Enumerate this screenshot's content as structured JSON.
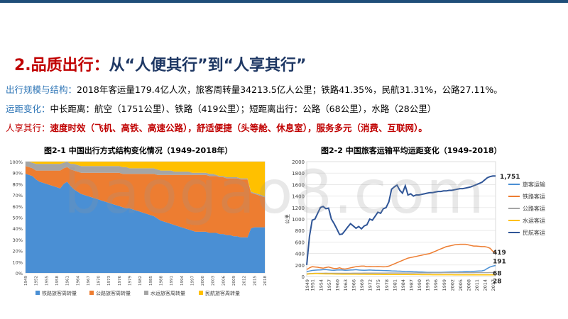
{
  "slide": {
    "title_prefix": "2.品质出行：",
    "title_rest": "从“人便其行”到“人享其行”",
    "line1_label": "出行规模与结构：",
    "line1_text": "2018年客运量179.4亿人次，旅客周转量34213.5亿人公里；铁路41.35%，民航31.31%，公路27.11%。",
    "line2_label": "运距变化：",
    "line2_text": "中长距离：航空（1751公里）、铁路（419公里）；短距离出行：公路（68公里），水路（28公里）",
    "line3_label": "人享其行：",
    "line3_text": "速度时效（飞机、高铁、高速公路），舒适便捷（头等舱、休息室），服务多元（消费、互联网）。",
    "watermark": "baogao8.com"
  },
  "colors": {
    "rail": "#4a8fd4",
    "road": "#ed7d31",
    "water": "#a5a5a5",
    "air": "#ffc000",
    "air_line": "#2f5597"
  },
  "chart_data": [
    {
      "type": "area",
      "title": "图2-1 中国出行方式结构变化情况（1949-2018年）",
      "x": [
        1949,
        1950,
        1951,
        1952,
        1953,
        1954,
        1955,
        1956,
        1957,
        1958,
        1959,
        1960,
        1961,
        1962,
        1963,
        1964,
        1965,
        1966,
        1967,
        1968,
        1969,
        1970,
        1971,
        1972,
        1973,
        1974,
        1975,
        1976,
        1977,
        1978,
        1979,
        1980,
        1981,
        1982,
        1983,
        1984,
        1985,
        1986,
        1987,
        1988,
        1989,
        1990,
        1991,
        1992,
        1993,
        1994,
        1995,
        1996,
        1997,
        1998,
        1999,
        2000,
        2001,
        2002,
        2003,
        2004,
        2005,
        2006,
        2007,
        2008,
        2009,
        2010,
        2011,
        2012,
        2013,
        2014,
        2015,
        2016,
        2017,
        2018
      ],
      "x_tick_labels": [
        "1949",
        "1952",
        "1955",
        "1958",
        "1961",
        "1964",
        "1967",
        "1970",
        "1973",
        "1976",
        "1979",
        "1982",
        "1985",
        "1988",
        "1991",
        "1994",
        "1997",
        "2000",
        "2003",
        "2006",
        "2009",
        "2012",
        "2015",
        "2018"
      ],
      "ylim": [
        0,
        100
      ],
      "y_ticks": [
        "0%",
        "10%",
        "20%",
        "30%",
        "40%",
        "50%",
        "60%",
        "70%",
        "80%",
        "90%",
        "100%"
      ],
      "stacked": true,
      "legend_position": "bottom",
      "series": [
        {
          "name": "铁路旅客周转量",
          "color_key": "rail",
          "values": [
            89,
            88,
            87,
            84,
            82,
            81,
            80,
            79,
            78,
            77,
            76,
            80,
            82,
            78,
            75,
            73,
            71,
            70,
            69,
            68,
            67,
            66,
            65,
            64,
            63,
            62,
            61,
            60,
            59,
            58,
            58,
            57,
            56,
            55,
            54,
            53,
            52,
            51,
            49,
            47,
            46,
            45,
            44,
            43,
            42,
            41,
            40,
            39,
            38,
            37,
            37,
            37,
            37,
            36,
            36,
            36,
            35,
            35,
            34,
            34,
            33,
            33,
            32,
            32,
            32,
            40,
            41,
            41,
            41,
            41
          ]
        },
        {
          "name": "公路旅客周转量",
          "color_key": "road",
          "values": [
            7,
            7,
            7,
            8,
            10,
            11,
            12,
            13,
            14,
            15,
            16,
            14,
            13,
            15,
            17,
            18,
            19,
            20,
            21,
            22,
            23,
            24,
            25,
            26,
            27,
            28,
            29,
            30,
            30,
            31,
            31,
            32,
            33,
            34,
            35,
            36,
            37,
            38,
            39,
            41,
            42,
            43,
            44,
            45,
            46,
            47,
            48,
            49,
            50,
            51,
            51,
            51,
            51,
            51,
            51,
            51,
            51,
            51,
            51,
            51,
            52,
            52,
            52,
            52,
            52,
            32,
            30,
            29,
            28,
            27
          ]
        },
        {
          "name": "水运旅客周转量",
          "color_key": "water",
          "values": [
            4,
            5,
            5,
            6,
            6,
            6,
            6,
            6,
            6,
            6,
            6,
            5,
            5,
            5,
            6,
            6,
            6,
            6,
            6,
            6,
            6,
            6,
            6,
            6,
            6,
            6,
            6,
            6,
            6,
            6,
            5,
            5,
            5,
            5,
            5,
            5,
            5,
            5,
            5,
            4,
            4,
            4,
            4,
            3,
            3,
            3,
            3,
            3,
            2,
            2,
            2,
            2,
            2,
            2,
            2,
            1,
            1,
            1,
            1,
            1,
            1,
            1,
            1,
            1,
            1,
            1,
            1,
            1,
            1,
            1
          ]
        },
        {
          "name": "民航旅客周转量",
          "color_key": "air",
          "values": [
            0,
            0,
            1,
            2,
            2,
            2,
            2,
            2,
            2,
            2,
            2,
            1,
            0,
            2,
            2,
            3,
            4,
            4,
            4,
            4,
            4,
            4,
            4,
            4,
            4,
            4,
            4,
            4,
            5,
            5,
            6,
            6,
            6,
            6,
            6,
            6,
            6,
            6,
            7,
            8,
            8,
            8,
            8,
            9,
            9,
            9,
            9,
            9,
            10,
            10,
            10,
            10,
            10,
            11,
            11,
            12,
            13,
            13,
            14,
            14,
            14,
            14,
            15,
            15,
            15,
            27,
            28,
            29,
            30,
            31
          ]
        }
      ]
    },
    {
      "type": "line",
      "title": "图2-2 中国旅客运输平均运距变化（1949-2018）",
      "ylabel": "公里",
      "ylim": [
        0,
        2000
      ],
      "y_ticks": [
        0,
        200,
        400,
        600,
        800,
        1000,
        1200,
        1400,
        1600,
        1800,
        2000
      ],
      "x_tick_labels": [
        "1949",
        "1951",
        "1954",
        "1957",
        "1960",
        "1963",
        "1966",
        "1969",
        "1972",
        "1975",
        "1978",
        "1981",
        "1984",
        "1987",
        "1990",
        "1993",
        "1996",
        "1999",
        "2002",
        "2005",
        "2008",
        "2011",
        "2014",
        "2017"
      ],
      "x": [
        1949,
        1950,
        1951,
        1952,
        1953,
        1954,
        1955,
        1956,
        1957,
        1958,
        1959,
        1960,
        1961,
        1962,
        1963,
        1964,
        1965,
        1966,
        1967,
        1968,
        1969,
        1970,
        1971,
        1972,
        1973,
        1974,
        1975,
        1976,
        1977,
        1978,
        1979,
        1980,
        1981,
        1982,
        1983,
        1984,
        1985,
        1986,
        1987,
        1988,
        1989,
        1990,
        1991,
        1992,
        1993,
        1994,
        1995,
        1996,
        1997,
        1998,
        1999,
        2000,
        2001,
        2002,
        2003,
        2004,
        2005,
        2006,
        2007,
        2008,
        2009,
        2010,
        2011,
        2012,
        2013,
        2014,
        2015,
        2016,
        2017,
        2018
      ],
      "legend_position": "right",
      "series": [
        {
          "name": "旅客运输",
          "color_key": "rail",
          "values": [
            85,
            95,
            105,
            110,
            112,
            115,
            118,
            120,
            115,
            110,
            108,
            112,
            115,
            112,
            108,
            110,
            112,
            115,
            118,
            112,
            110,
            108,
            110,
            112,
            110,
            108,
            106,
            105,
            104,
            103,
            100,
            98,
            96,
            94,
            92,
            90,
            88,
            86,
            84,
            82,
            80,
            78,
            76,
            74,
            72,
            70,
            70,
            70,
            71,
            72,
            73,
            74,
            75,
            76,
            77,
            78,
            80,
            82,
            84,
            86,
            88,
            90,
            92,
            95,
            98,
            110,
            140,
            165,
            180,
            191
          ]
        },
        {
          "name": "铁路客运",
          "color_key": "road",
          "values": [
            120,
            150,
            170,
            165,
            160,
            150,
            145,
            155,
            165,
            150,
            140,
            140,
            150,
            135,
            130,
            140,
            150,
            160,
            170,
            175,
            180,
            180,
            170,
            172,
            170,
            170,
            171,
            170,
            168,
            170,
            180,
            200,
            220,
            240,
            260,
            280,
            300,
            320,
            330,
            340,
            350,
            360,
            370,
            380,
            390,
            400,
            420,
            440,
            460,
            480,
            500,
            520,
            530,
            540,
            550,
            555,
            560,
            560,
            560,
            550,
            540,
            530,
            530,
            525,
            520,
            520,
            510,
            490,
            440,
            419
          ]
        },
        {
          "name": "公路客运",
          "color_key": "water",
          "values": [
            45,
            50,
            52,
            55,
            55,
            56,
            56,
            57,
            56,
            55,
            55,
            56,
            56,
            55,
            55,
            56,
            56,
            57,
            57,
            57,
            57,
            58,
            58,
            58,
            58,
            58,
            58,
            59,
            59,
            59,
            60,
            60,
            60,
            60,
            60,
            61,
            61,
            61,
            61,
            61,
            62,
            62,
            62,
            62,
            62,
            62,
            63,
            63,
            63,
            63,
            64,
            64,
            64,
            65,
            65,
            65,
            65,
            66,
            66,
            66,
            66,
            66,
            67,
            67,
            67,
            67,
            67,
            68,
            68,
            68
          ]
        },
        {
          "name": "水运客运",
          "color_key": "air",
          "values": [
            40,
            45,
            48,
            50,
            50,
            48,
            46,
            45,
            44,
            44,
            43,
            42,
            42,
            41,
            40,
            40,
            40,
            39,
            39,
            38,
            38,
            38,
            37,
            37,
            37,
            36,
            36,
            36,
            35,
            35,
            35,
            35,
            34,
            34,
            34,
            33,
            33,
            33,
            32,
            32,
            32,
            32,
            31,
            31,
            31,
            31,
            30,
            30,
            30,
            30,
            30,
            30,
            30,
            30,
            29,
            29,
            29,
            29,
            29,
            29,
            29,
            29,
            29,
            28,
            28,
            28,
            28,
            28,
            28,
            28
          ]
        },
        {
          "name": "民航客运",
          "color_key": "air_line",
          "values": [
            200,
            700,
            980,
            1000,
            1100,
            1200,
            1220,
            1180,
            1190,
            1000,
            920,
            830,
            730,
            740,
            800,
            860,
            920,
            880,
            840,
            870,
            830,
            880,
            900,
            1000,
            980,
            1050,
            1120,
            1100,
            1180,
            1200,
            1300,
            1520,
            1560,
            1590,
            1500,
            1450,
            1580,
            1420,
            1440,
            1400,
            1420,
            1420,
            1430,
            1440,
            1450,
            1460,
            1460,
            1470,
            1480,
            1480,
            1490,
            1490,
            1500,
            1500,
            1510,
            1520,
            1530,
            1530,
            1540,
            1550,
            1560,
            1580,
            1600,
            1620,
            1640,
            1680,
            1720,
            1740,
            1750,
            1751
          ]
        }
      ],
      "end_labels": [
        {
          "text": "1,751",
          "value": 1751
        },
        {
          "text": "419",
          "value": 419
        },
        {
          "text": "191",
          "value": 191
        },
        {
          "text": "68",
          "value": 68
        },
        {
          "text": "28",
          "value": 28
        }
      ]
    }
  ]
}
